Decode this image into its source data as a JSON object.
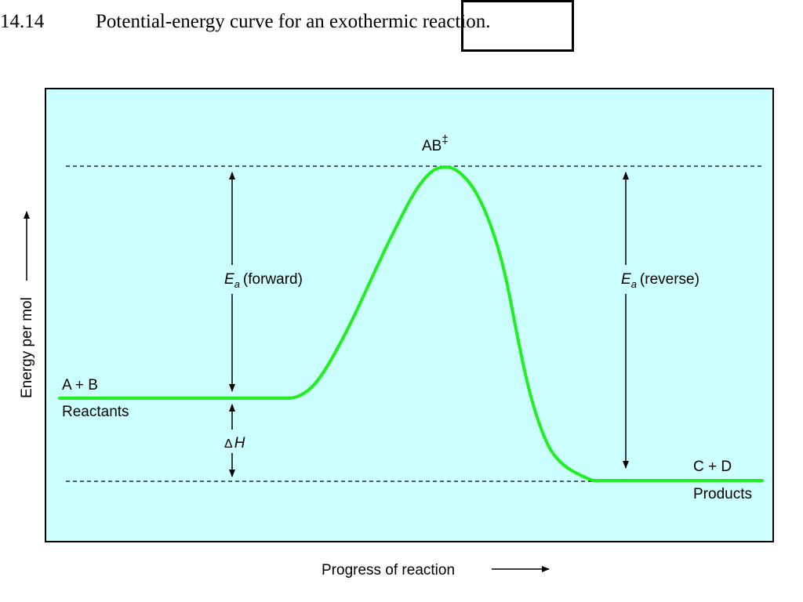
{
  "heading": {
    "number": "14.14",
    "title": "Potential-energy curve for an exothermic reaction."
  },
  "diagram": {
    "colors": {
      "panel_background": "#ccffff",
      "curve": "#22ee22",
      "axis": "#000000"
    },
    "labels": {
      "transition_state": "AB",
      "transition_state_symbol": "‡",
      "ea_symbol": "E",
      "ea_subscript": "a",
      "ea_forward": "(forward)",
      "ea_reverse": "(reverse)",
      "reactants_formula": "A + B",
      "reactants": "Reactants",
      "delta_symbol": "Δ",
      "delta_h": "H",
      "products_formula": "C + D",
      "products": "Products",
      "y_axis": "Energy per mol",
      "x_axis": "Progress of reaction"
    }
  }
}
